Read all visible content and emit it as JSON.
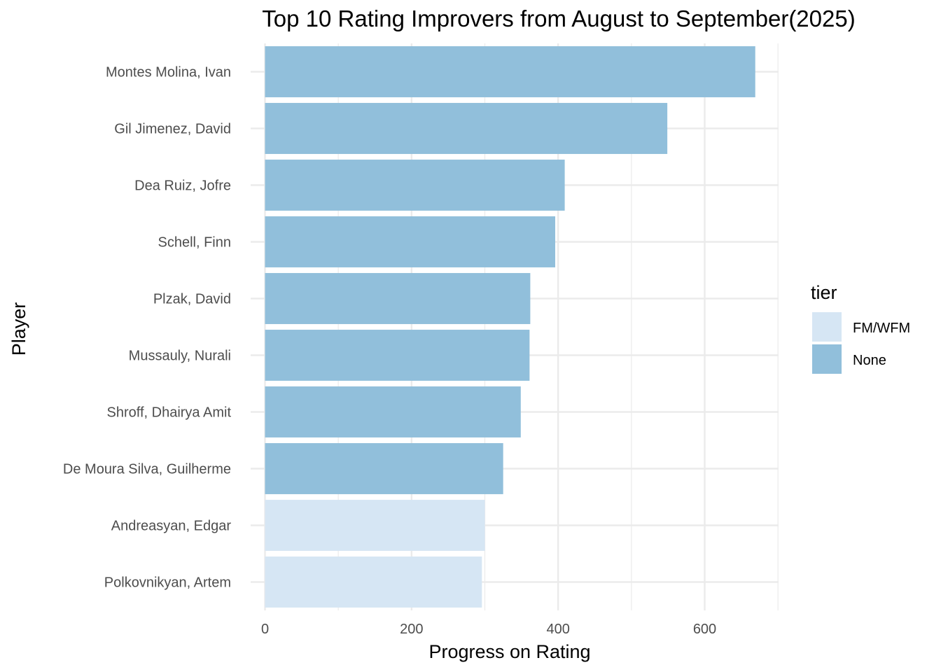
{
  "chart_data": {
    "type": "bar",
    "orientation": "horizontal",
    "title": "Top 10 Rating Improvers from August to September(2025)",
    "xlabel": "Progress on Rating",
    "ylabel": "Player",
    "xlim": [
      0,
      700
    ],
    "xticks": [
      0,
      200,
      400,
      600
    ],
    "grid": true,
    "legend": {
      "title": "tier",
      "placement": "right",
      "entries": [
        {
          "name": "FM/WFM",
          "color": "#d6e6f4"
        },
        {
          "name": "None",
          "color": "#91bfdb"
        }
      ]
    },
    "categories": [
      "Montes Molina, Ivan",
      "Gil Jimenez, David",
      "Dea Ruiz, Jofre",
      "Schell, Finn",
      "Plzak, David",
      "Mussauly, Nurali",
      "Shroff, Dhairya Amit",
      "De Moura Silva, Guilherme",
      "Andreasyan, Edgar",
      "Polkovnikyan, Artem"
    ],
    "values": [
      669,
      549,
      409,
      396,
      362,
      361,
      349,
      325,
      300,
      296
    ],
    "tiers": [
      "None",
      "None",
      "None",
      "None",
      "None",
      "None",
      "None",
      "None",
      "FM/WFM",
      "FM/WFM"
    ]
  }
}
